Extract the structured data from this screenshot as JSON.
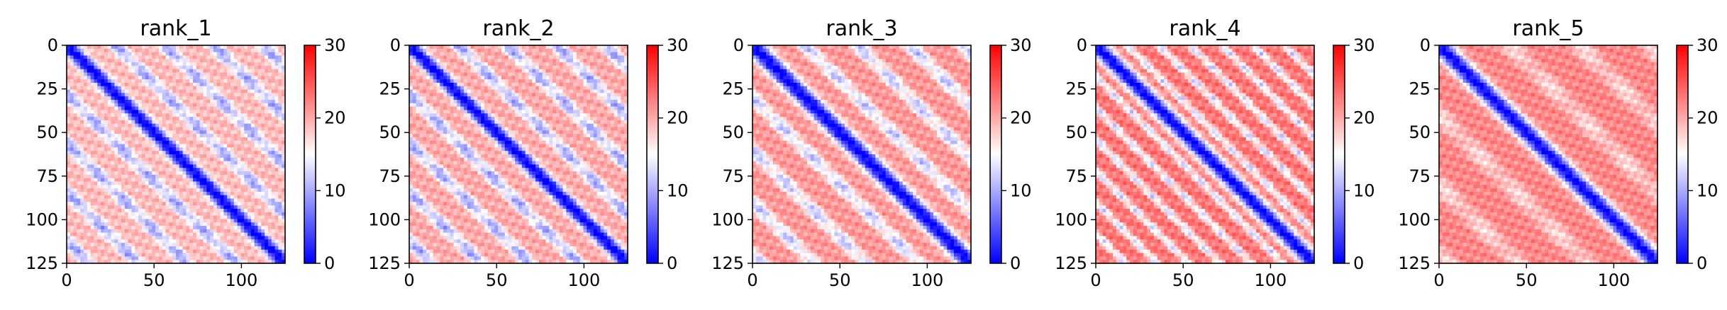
{
  "figure": {
    "background": "#ffffff"
  },
  "chart_data": [
    {
      "type": "heatmap",
      "title": "rank_1",
      "xlabel": "",
      "ylabel": "",
      "xlim": [
        0,
        125
      ],
      "ylim": [
        125,
        0
      ],
      "xticks": [
        0,
        50,
        100
      ],
      "yticks": [
        0,
        25,
        50,
        75,
        100,
        125
      ],
      "colorbar": {
        "min": 0,
        "max": 30,
        "ticks": [
          0,
          10,
          20,
          30
        ]
      },
      "colormap": [
        "#0000ff",
        "#ffffff",
        "#ff0000"
      ],
      "pattern": {
        "diagonal_band_width": 4,
        "secondary_period": 28,
        "background_level": 19,
        "low_level": 9
      },
      "grid": false
    },
    {
      "type": "heatmap",
      "title": "rank_2",
      "xlabel": "",
      "ylabel": "",
      "xlim": [
        0,
        125
      ],
      "ylim": [
        125,
        0
      ],
      "xticks": [
        0,
        50,
        100
      ],
      "yticks": [
        0,
        25,
        50,
        75,
        100,
        125
      ],
      "colorbar": {
        "min": 0,
        "max": 30,
        "ticks": [
          0,
          10,
          20,
          30
        ]
      },
      "colormap": [
        "#0000ff",
        "#ffffff",
        "#ff0000"
      ],
      "pattern": {
        "diagonal_band_width": 4,
        "secondary_period": 28,
        "background_level": 20,
        "low_level": 9
      },
      "grid": false
    },
    {
      "type": "heatmap",
      "title": "rank_3",
      "xlabel": "",
      "ylabel": "",
      "xlim": [
        0,
        125
      ],
      "ylim": [
        125,
        0
      ],
      "xticks": [
        0,
        50,
        100
      ],
      "yticks": [
        0,
        25,
        50,
        75,
        100,
        125
      ],
      "colorbar": {
        "min": 0,
        "max": 30,
        "ticks": [
          0,
          10,
          20,
          30
        ]
      },
      "colormap": [
        "#0000ff",
        "#ffffff",
        "#ff0000"
      ],
      "pattern": {
        "diagonal_band_width": 5,
        "secondary_period": 30,
        "background_level": 21,
        "low_level": 11
      },
      "grid": false
    },
    {
      "type": "heatmap",
      "title": "rank_4",
      "xlabel": "",
      "ylabel": "",
      "xlim": [
        0,
        125
      ],
      "ylim": [
        125,
        0
      ],
      "xticks": [
        0,
        50,
        100
      ],
      "yticks": [
        0,
        25,
        50,
        75,
        100,
        125
      ],
      "colorbar": {
        "min": 0,
        "max": 30,
        "ticks": [
          0,
          10,
          20,
          30
        ]
      },
      "colormap": [
        "#0000ff",
        "#ffffff",
        "#ff0000"
      ],
      "pattern": {
        "diagonal_band_width": 5,
        "secondary_period": 18,
        "background_level": 23,
        "low_level": 12
      },
      "grid": false
    },
    {
      "type": "heatmap",
      "title": "rank_5",
      "xlabel": "",
      "ylabel": "",
      "xlim": [
        0,
        125
      ],
      "ylim": [
        125,
        0
      ],
      "xticks": [
        0,
        50,
        100
      ],
      "yticks": [
        0,
        25,
        50,
        75,
        100,
        125
      ],
      "colorbar": {
        "min": 0,
        "max": 30,
        "ticks": [
          0,
          10,
          20,
          30
        ]
      },
      "colormap": [
        "#0000ff",
        "#ffffff",
        "#ff0000"
      ],
      "pattern": {
        "diagonal_band_width": 5,
        "secondary_period": 40,
        "background_level": 22,
        "low_level": 17
      },
      "grid": false
    }
  ]
}
